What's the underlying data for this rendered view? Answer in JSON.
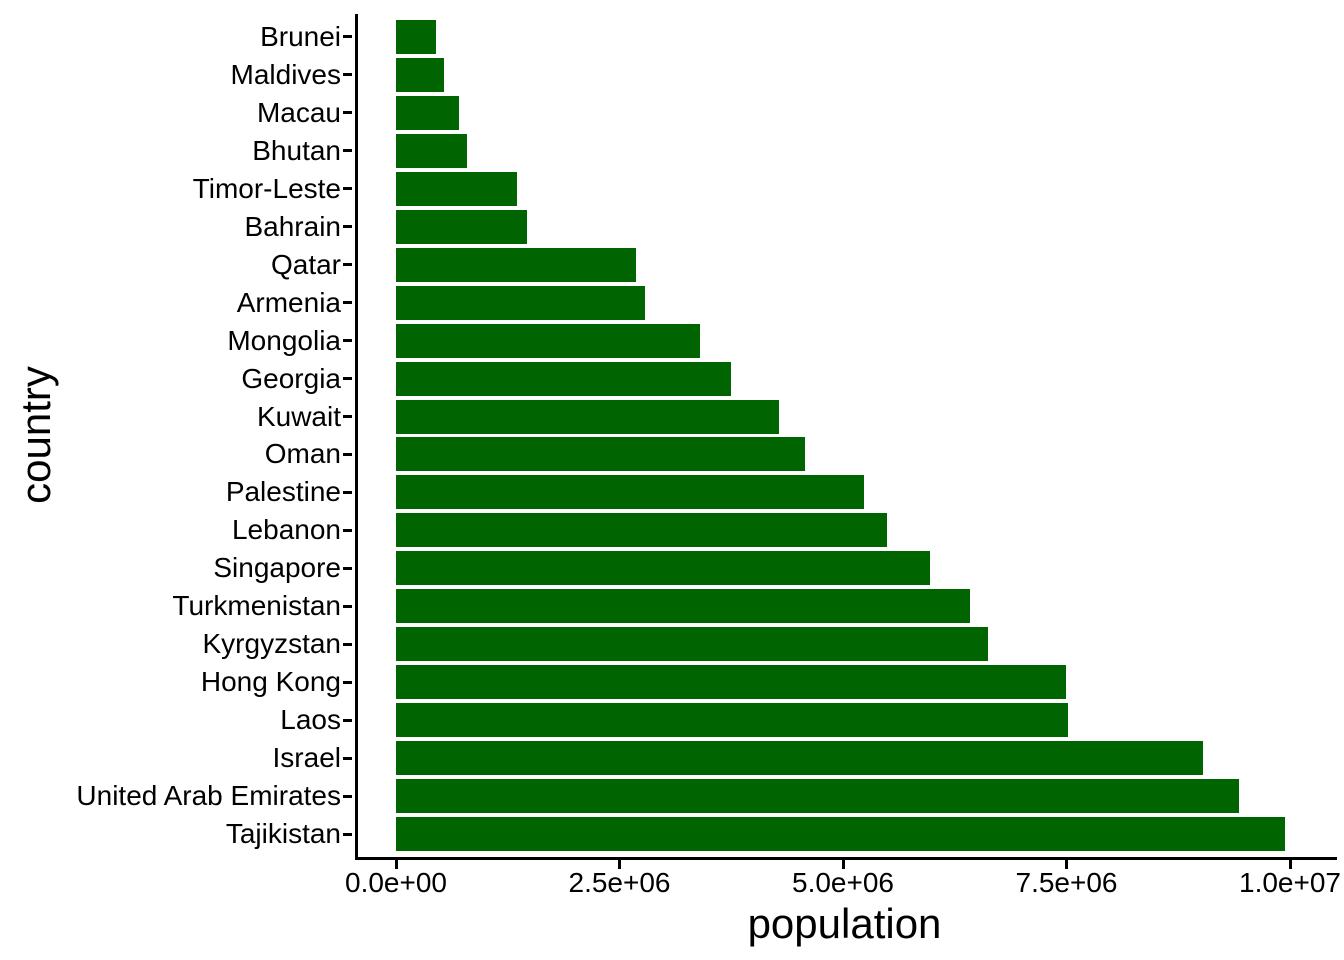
{
  "chart_data": {
    "type": "bar",
    "orientation": "horizontal",
    "title": "",
    "xlabel": "population",
    "ylabel": "country",
    "sort_order": "ascending top to bottom",
    "grid": false,
    "legend": false,
    "bar_color": "#006400",
    "axis_color": "#000000",
    "text_color": "#000000",
    "background_color": "#ffffff",
    "xlim": [
      0,
      10000000
    ],
    "x_tick_values": [
      0,
      2500000,
      5000000,
      7500000,
      10000000
    ],
    "x_tick_labels": [
      "0.0e+00",
      "2.5e+06",
      "5.0e+06",
      "7.5e+06",
      "1.0e+07"
    ],
    "categories": [
      "Brunei",
      "Maldives",
      "Macau",
      "Bhutan",
      "Timor-Leste",
      "Bahrain",
      "Qatar",
      "Armenia",
      "Mongolia",
      "Georgia",
      "Kuwait",
      "Oman",
      "Palestine",
      "Lebanon",
      "Singapore",
      "Turkmenistan",
      "Kyrgyzstan",
      "Hong Kong",
      "Laos",
      "Israel",
      "United Arab Emirates",
      "Tajikistan"
    ],
    "values": [
      450000,
      540000,
      700000,
      790000,
      1350000,
      1470000,
      2690000,
      2790000,
      3400000,
      3750000,
      4280000,
      4580000,
      5240000,
      5490000,
      5970000,
      6420000,
      6620000,
      7490000,
      7520000,
      9030000,
      9430000,
      9940000
    ]
  }
}
